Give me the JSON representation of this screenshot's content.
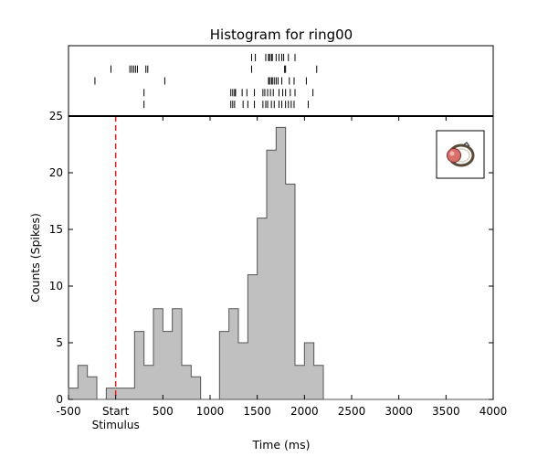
{
  "chart_data": {
    "type": "bar",
    "title": "Histogram for ring00",
    "xlabel": "Time (ms)",
    "ylabel": "Counts (Spikes)",
    "xlim": [
      -500,
      4000
    ],
    "ylim": [
      0,
      25
    ],
    "x_ticks": [
      -500,
      500,
      1000,
      1500,
      2000,
      2500,
      3000,
      3500,
      4000
    ],
    "y_ticks": [
      0,
      5,
      10,
      15,
      20,
      25
    ],
    "start_tick": {
      "x": 0,
      "label": "Start",
      "sublabel": "Stimulus"
    },
    "stimulus_line_x": 0,
    "bin_width": 100,
    "bins": {
      "start": -500,
      "counts": [
        1,
        3,
        2,
        0,
        1,
        1,
        1,
        6,
        3,
        8,
        6,
        8,
        3,
        2,
        0,
        0,
        6,
        8,
        5,
        11,
        16,
        22,
        24,
        19,
        3,
        5,
        3,
        0,
        0,
        0,
        0,
        0,
        0,
        0,
        0,
        0,
        0,
        0,
        0,
        0,
        0,
        0,
        0,
        0,
        0
      ]
    },
    "raster_trials": [
      [
        1440,
        1480,
        1590,
        1620,
        1630,
        1650,
        1660,
        1700,
        1730,
        1760,
        1780,
        1830,
        1900
      ],
      [
        -50,
        150,
        170,
        190,
        210,
        230,
        320,
        340,
        1440,
        1790,
        1800,
        2130
      ],
      [
        -220,
        520,
        1620,
        1630,
        1650,
        1660,
        1680,
        1700,
        1720,
        1760,
        1840,
        1890,
        2020
      ],
      [
        300,
        1220,
        1240,
        1260,
        1270,
        1340,
        1390,
        1470,
        1560,
        1580,
        1610,
        1640,
        1670,
        1730,
        1770,
        1800,
        1850,
        1900,
        2090
      ],
      [
        300,
        1220,
        1240,
        1260,
        1350,
        1400,
        1470,
        1560,
        1590,
        1610,
        1650,
        1680,
        1730,
        1760,
        1800,
        1830,
        1860,
        1890,
        2040
      ]
    ],
    "grid": false,
    "legend": "none",
    "colors": {
      "bar_fill": "#c0c0c0",
      "bar_edge": "#555555",
      "stimulus_line": "#e8201c",
      "raster": "#000000"
    },
    "inset_icon": "ring-icon"
  }
}
